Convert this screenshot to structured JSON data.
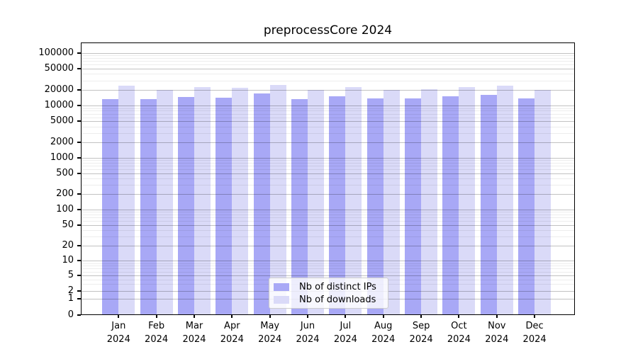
{
  "title": "preprocessCore 2024",
  "colors": {
    "ips": "#a8a8f6",
    "downloads": "#dadaf8",
    "axis": "#000000",
    "legend_border": "#cccccc"
  },
  "legend": {
    "items": [
      {
        "key": "ips",
        "label": "Nb of distinct IPs"
      },
      {
        "key": "downloads",
        "label": "Nb of downloads"
      }
    ]
  },
  "chart_data": {
    "type": "bar",
    "title": "preprocessCore 2024",
    "categories": [
      "Jan",
      "Feb",
      "Mar",
      "Apr",
      "May",
      "Jun",
      "Jul",
      "Aug",
      "Sep",
      "Oct",
      "Nov",
      "Dec"
    ],
    "x_tick_second_line": "2024",
    "series": [
      {
        "name": "Nb of distinct IPs",
        "color": "#a8a8f6",
        "values": [
          13200,
          13400,
          14600,
          14200,
          17200,
          13200,
          15100,
          13700,
          13900,
          15300,
          16200,
          13900
        ]
      },
      {
        "name": "Nb of downloads",
        "color": "#dadaf8",
        "values": [
          23800,
          20100,
          22500,
          22000,
          25000,
          20000,
          22400,
          20000,
          20700,
          22700,
          24200,
          20100
        ]
      }
    ],
    "y_ticks": [
      0,
      1,
      2,
      5,
      10,
      20,
      50,
      100,
      200,
      500,
      1000,
      2000,
      5000,
      10000,
      20000,
      50000,
      100000
    ],
    "y_scale": "symlog",
    "ylim": [
      0,
      150000
    ],
    "grid": true,
    "legend_position": "lower-center",
    "xlabel": "",
    "ylabel": ""
  }
}
